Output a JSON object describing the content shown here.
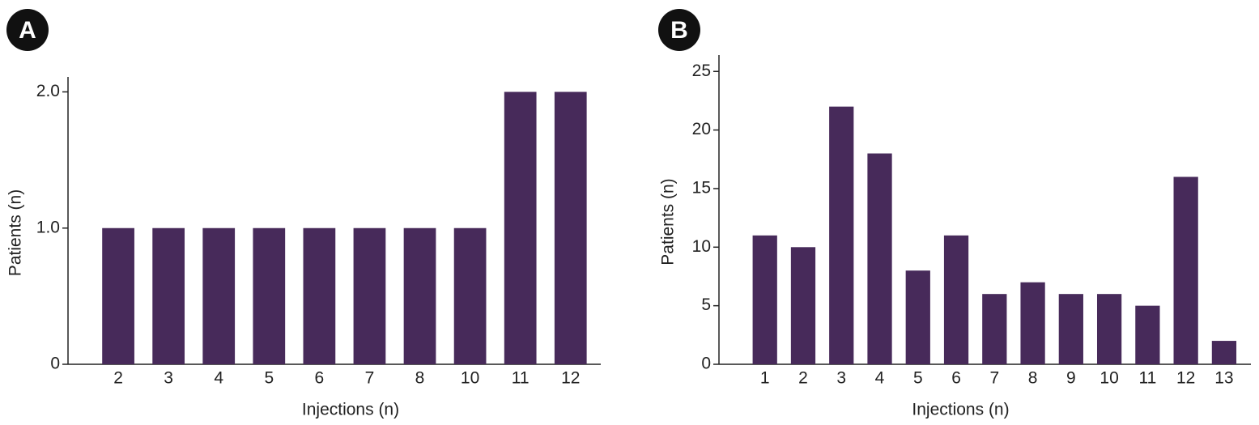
{
  "chart_data": [
    {
      "type": "bar",
      "label": "A",
      "x_label": "Injections (n)",
      "y_label": "Patients (n)",
      "categories": [
        "2",
        "3",
        "4",
        "5",
        "6",
        "7",
        "8",
        "10",
        "11",
        "12"
      ],
      "values": [
        1,
        1,
        1,
        1,
        1,
        1,
        1,
        1,
        2,
        2
      ],
      "color": "#472a5a",
      "ylim": [
        0,
        2.11
      ],
      "yticks": [
        0,
        {
          "value": 1,
          "label": "1.0"
        },
        {
          "value": 2,
          "label": "2.0"
        }
      ]
    },
    {
      "type": "bar",
      "label": "B",
      "x_label": "Injections (n)",
      "y_label": "Patients (n)",
      "categories": [
        "1",
        "2",
        "3",
        "4",
        "5",
        "6",
        "7",
        "8",
        "9",
        "10",
        "11",
        "12",
        "13"
      ],
      "values": [
        11,
        10,
        22,
        18,
        8,
        11,
        6,
        7,
        6,
        6,
        5,
        16,
        2
      ],
      "color": "#472a5a",
      "ylim": [
        0,
        26.4
      ],
      "yticks": [
        0,
        5,
        10,
        15,
        20,
        25
      ]
    }
  ]
}
